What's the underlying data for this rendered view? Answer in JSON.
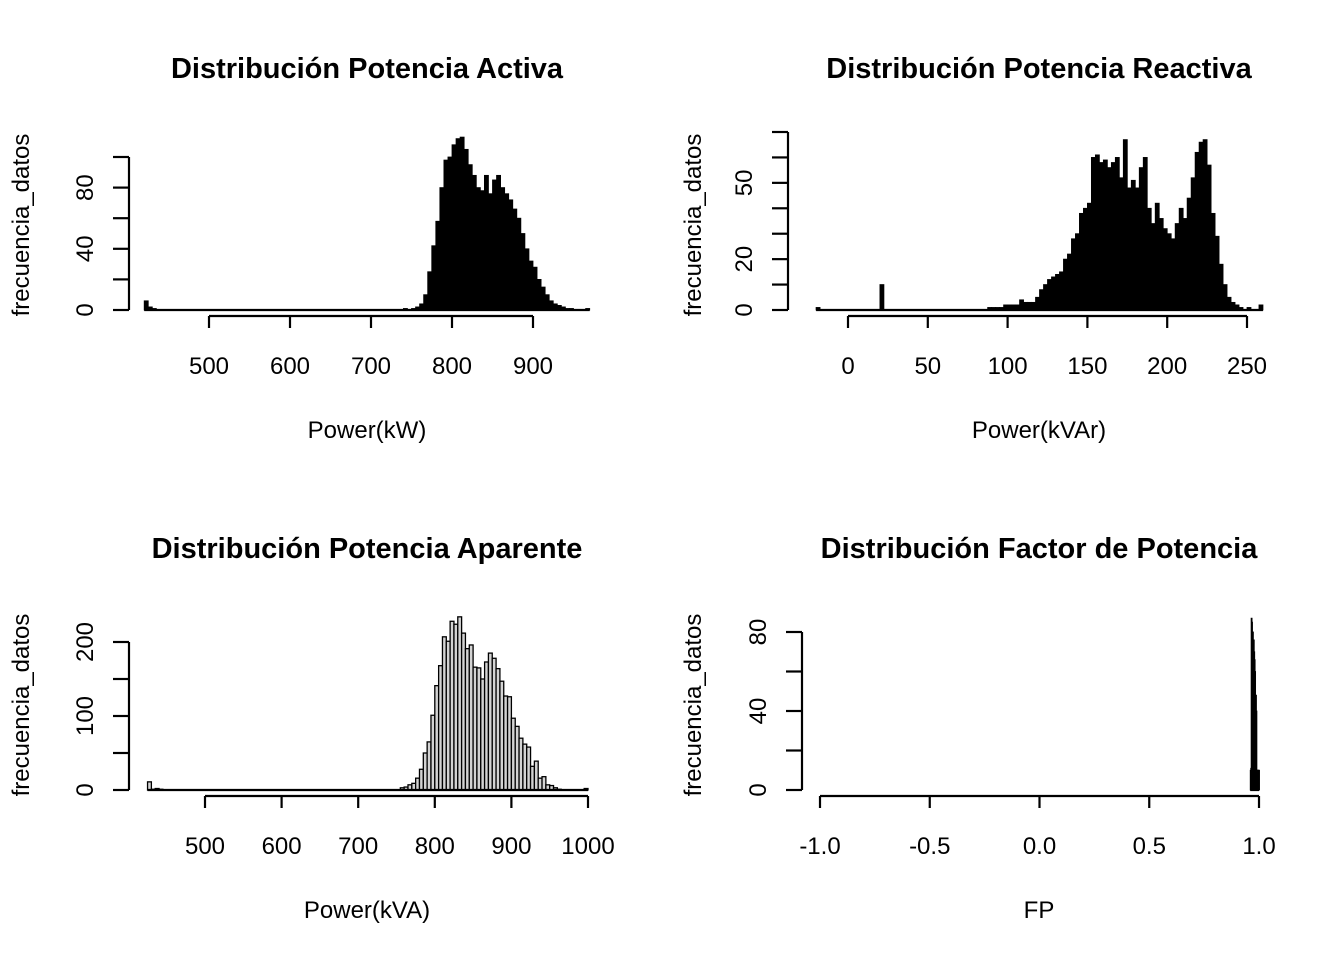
{
  "chart_data": [
    {
      "type": "bar",
      "subtype": "histogram",
      "title": "Distribución Potencia Activa",
      "xlabel": "Power(kW)",
      "ylabel": "frecuencia_datos",
      "xticks": [
        500,
        600,
        700,
        800,
        900
      ],
      "xtick_labels": [
        "500",
        "600",
        "700",
        "800",
        "900"
      ],
      "yticks": [
        0,
        20,
        40,
        60,
        80,
        100
      ],
      "ytick_labels": [
        "0",
        "",
        "40",
        "",
        "80",
        ""
      ],
      "xlim": [
        420,
        970
      ],
      "ylim": [
        0,
        100
      ],
      "bar_fill": "#000000",
      "bin_width": 5,
      "bins": [
        420,
        425,
        430,
        435,
        440,
        445,
        450,
        500,
        550,
        600,
        650,
        700,
        740,
        745,
        750,
        755,
        760,
        765,
        770,
        775,
        780,
        785,
        790,
        795,
        800,
        805,
        810,
        815,
        820,
        825,
        830,
        835,
        840,
        845,
        850,
        855,
        860,
        865,
        870,
        875,
        880,
        885,
        890,
        895,
        900,
        905,
        910,
        915,
        920,
        925,
        930,
        935,
        940,
        945,
        950,
        955,
        960,
        965
      ],
      "values": [
        6,
        2,
        1,
        0,
        0,
        0,
        0,
        0,
        0,
        0,
        0,
        0,
        1,
        0,
        1,
        2,
        4,
        10,
        25,
        42,
        58,
        80,
        98,
        100,
        108,
        112,
        113,
        105,
        95,
        88,
        80,
        78,
        88,
        76,
        85,
        88,
        80,
        76,
        72,
        66,
        60,
        50,
        40,
        32,
        28,
        20,
        15,
        10,
        6,
        4,
        3,
        2,
        1,
        1,
        0,
        0,
        0,
        1
      ]
    },
    {
      "type": "bar",
      "subtype": "histogram",
      "title": "Distribución Potencia Reactiva",
      "xlabel": "Power(kVAr)",
      "ylabel": "frecuencia_datos",
      "xticks": [
        0,
        50,
        100,
        150,
        200,
        250
      ],
      "xtick_labels": [
        "0",
        "50",
        "100",
        "150",
        "200",
        "250"
      ],
      "yticks": [
        0,
        10,
        20,
        30,
        40,
        50,
        60,
        70
      ],
      "ytick_labels": [
        "0",
        "",
        "20",
        "",
        "",
        "50",
        "",
        ""
      ],
      "xlim": [
        -20,
        260
      ],
      "ylim": [
        0,
        70
      ],
      "bar_fill": "#000000",
      "bin_width": 2.5,
      "bins": [
        -20,
        20,
        87.5,
        90,
        92.5,
        95,
        97.5,
        100,
        102.5,
        105,
        107.5,
        110,
        112.5,
        115,
        117.5,
        120,
        122.5,
        125,
        127.5,
        130,
        132.5,
        135,
        137.5,
        140,
        142.5,
        145,
        147.5,
        150,
        152.5,
        155,
        157.5,
        160,
        162.5,
        165,
        167.5,
        170,
        172.5,
        175,
        177.5,
        180,
        182.5,
        185,
        187.5,
        190,
        192.5,
        195,
        197.5,
        200,
        202.5,
        205,
        207.5,
        210,
        212.5,
        215,
        217.5,
        220,
        222.5,
        225,
        227.5,
        230,
        232.5,
        235,
        237.5,
        240,
        242.5,
        245,
        247.5,
        250,
        252.5,
        255,
        257.5
      ],
      "values": [
        1,
        10,
        1,
        1,
        1,
        1,
        2,
        2,
        2,
        2,
        4,
        3,
        3,
        3,
        5,
        8,
        10,
        12,
        13,
        14,
        15,
        20,
        22,
        28,
        30,
        38,
        40,
        42,
        60,
        61,
        58,
        59,
        56,
        58,
        60,
        52,
        67,
        48,
        51,
        48,
        56,
        60,
        40,
        34,
        42,
        36,
        32,
        30,
        28,
        34,
        40,
        36,
        44,
        52,
        62,
        66,
        67,
        57,
        38,
        29,
        18,
        10,
        5,
        3,
        2,
        1,
        0,
        1,
        0,
        0,
        2
      ]
    },
    {
      "type": "bar",
      "subtype": "histogram",
      "title": "Distribución Potencia Aparente",
      "xlabel": "Power(kVA)",
      "ylabel": "frecuencia_datos",
      "xticks": [
        500,
        600,
        700,
        800,
        900,
        1000
      ],
      "xtick_labels": [
        "500",
        "600",
        "700",
        "800",
        "900",
        "1000"
      ],
      "yticks": [
        0,
        50,
        100,
        150,
        200
      ],
      "ytick_labels": [
        "0",
        "",
        "100",
        "",
        "200"
      ],
      "xlim": [
        425,
        1000
      ],
      "ylim": [
        0,
        200
      ],
      "bar_fill": "#d3d3d3",
      "bar_stroke": "#000000",
      "bin_width": 5,
      "bins": [
        425,
        430,
        435,
        440,
        755,
        760,
        765,
        770,
        775,
        780,
        785,
        790,
        795,
        800,
        805,
        810,
        815,
        820,
        825,
        830,
        835,
        840,
        845,
        850,
        855,
        860,
        865,
        870,
        875,
        880,
        885,
        890,
        895,
        900,
        905,
        910,
        915,
        920,
        925,
        930,
        935,
        940,
        945,
        950,
        955,
        960,
        995
      ],
      "values": [
        11,
        1,
        2,
        1,
        3,
        4,
        7,
        9,
        16,
        28,
        50,
        65,
        101,
        141,
        168,
        207,
        201,
        228,
        224,
        234,
        212,
        191,
        196,
        166,
        165,
        150,
        173,
        185,
        178,
        164,
        147,
        127,
        126,
        97,
        86,
        70,
        62,
        58,
        32,
        39,
        16,
        18,
        7,
        6,
        3,
        1,
        2
      ]
    },
    {
      "type": "bar",
      "subtype": "histogram",
      "title": "Distribución Factor de Potencia",
      "xlabel": "FP",
      "ylabel": "frecuencia_datos",
      "xticks": [
        -1.0,
        -0.5,
        0.0,
        0.5,
        1.0
      ],
      "xtick_labels": [
        "-1.0",
        "-0.5",
        "0.0",
        "0.5",
        "1.0"
      ],
      "yticks": [
        0,
        20,
        40,
        60,
        80
      ],
      "ytick_labels": [
        "0",
        "",
        "40",
        "",
        "80"
      ],
      "xlim": [
        -1.0,
        1.0
      ],
      "ylim": [
        0,
        80
      ],
      "bar_fill": "#000000",
      "bin_width": 0.002,
      "bins": [
        0.96,
        0.962,
        0.964,
        0.966,
        0.968,
        0.97,
        0.972,
        0.974,
        0.976,
        0.978,
        0.98,
        0.982,
        0.984,
        0.986,
        0.988,
        0.99,
        0.992,
        0.994,
        0.996,
        0.998
      ],
      "values": [
        10,
        11,
        87,
        85,
        80,
        80,
        76,
        76,
        70,
        66,
        60,
        48,
        48,
        40,
        10,
        10,
        10,
        10,
        10,
        10
      ]
    }
  ]
}
